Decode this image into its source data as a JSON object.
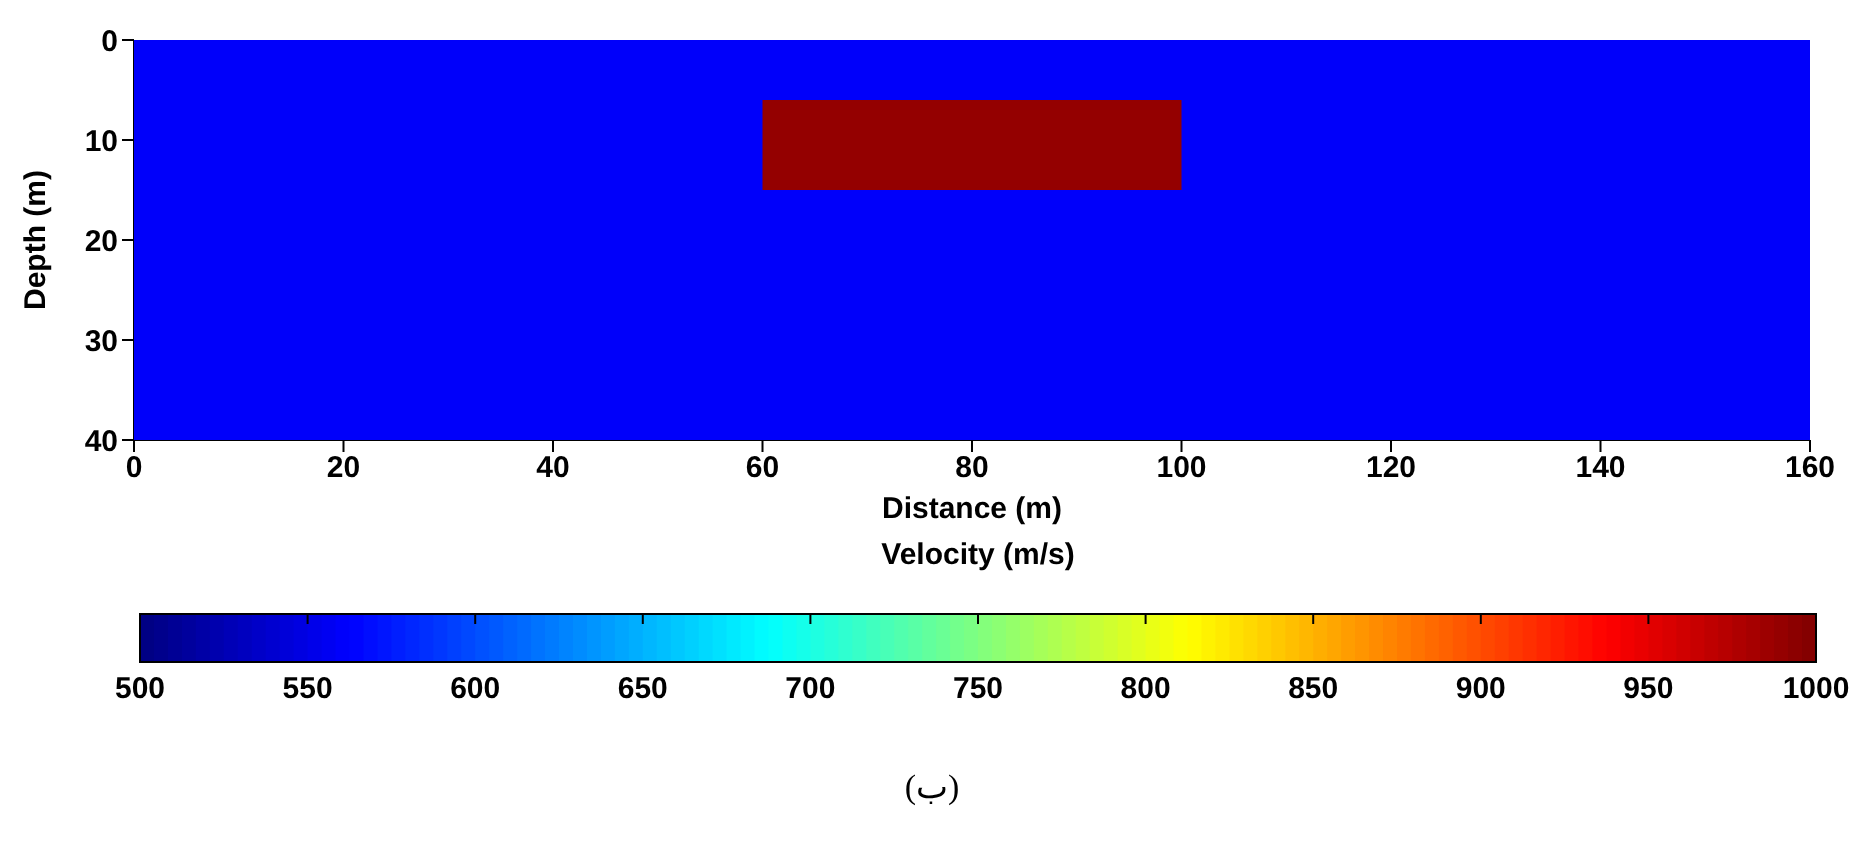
{
  "chart_data": {
    "type": "heatmap",
    "xlabel": "Distance (m)",
    "ylabel": "Depth (m)",
    "clabel": "Velocity (m/s)",
    "cells": [
      [
        560,
        560,
        560,
        560,
        560,
        560,
        560,
        560
      ],
      [
        560,
        560,
        560,
        560,
        560,
        560,
        560,
        560
      ],
      [
        560,
        560,
        560,
        560,
        560,
        560,
        560,
        560
      ],
      [
        560,
        560,
        560,
        560,
        560,
        560,
        560,
        560
      ],
      [
        560,
        560,
        560,
        560,
        560,
        560,
        560,
        560
      ],
      [
        560,
        560,
        560,
        560,
        560,
        560,
        560,
        560
      ],
      [
        560,
        560,
        560,
        990,
        990,
        560,
        560,
        560
      ],
      [
        560,
        560,
        560,
        990,
        990,
        560,
        560,
        560
      ],
      [
        560,
        560,
        560,
        990,
        990,
        560,
        560,
        560
      ],
      [
        560,
        560,
        560,
        990,
        990,
        560,
        560,
        560
      ],
      [
        560,
        560,
        560,
        990,
        990,
        560,
        560,
        560
      ],
      [
        560,
        560,
        560,
        990,
        990,
        560,
        560,
        560
      ],
      [
        560,
        560,
        560,
        990,
        990,
        560,
        560,
        560
      ],
      [
        560,
        560,
        560,
        990,
        990,
        560,
        560,
        560
      ],
      [
        560,
        560,
        560,
        990,
        990,
        560,
        560,
        560
      ],
      [
        560,
        560,
        560,
        560,
        560,
        560,
        560,
        560
      ],
      [
        560,
        560,
        560,
        560,
        560,
        560,
        560,
        560
      ],
      [
        560,
        560,
        560,
        560,
        560,
        560,
        560,
        560
      ],
      [
        560,
        560,
        560,
        560,
        560,
        560,
        560,
        560
      ],
      [
        560,
        560,
        560,
        560,
        560,
        560,
        560,
        560
      ],
      [
        560,
        560,
        560,
        560,
        560,
        560,
        560,
        560
      ],
      [
        560,
        560,
        560,
        560,
        560,
        560,
        560,
        560
      ],
      [
        560,
        560,
        560,
        560,
        560,
        560,
        560,
        560
      ],
      [
        560,
        560,
        560,
        560,
        560,
        560,
        560,
        560
      ],
      [
        560,
        560,
        560,
        560,
        560,
        560,
        560,
        560
      ],
      [
        560,
        560,
        560,
        560,
        560,
        560,
        560,
        560
      ],
      [
        560,
        560,
        560,
        560,
        560,
        560,
        560,
        560
      ],
      [
        560,
        560,
        560,
        560,
        560,
        560,
        560,
        560
      ],
      [
        560,
        560,
        560,
        560,
        560,
        560,
        560,
        560
      ],
      [
        560,
        560,
        560,
        560,
        560,
        560,
        560,
        560
      ],
      [
        560,
        560,
        560,
        560,
        560,
        560,
        560,
        560
      ],
      [
        560,
        560,
        560,
        560,
        560,
        560,
        560,
        560
      ],
      [
        560,
        560,
        560,
        560,
        560,
        560,
        560,
        560
      ],
      [
        560,
        560,
        560,
        560,
        560,
        560,
        560,
        560
      ],
      [
        560,
        560,
        560,
        560,
        560,
        560,
        560,
        560
      ],
      [
        560,
        560,
        560,
        560,
        560,
        560,
        560,
        560
      ],
      [
        560,
        560,
        560,
        560,
        560,
        560,
        560,
        560
      ],
      [
        560,
        560,
        560,
        560,
        560,
        560,
        560,
        560
      ],
      [
        560,
        560,
        560,
        560,
        560,
        560,
        560,
        560
      ],
      [
        560,
        560,
        560,
        560,
        560,
        560,
        560,
        560
      ]
    ],
    "xlim": [
      0,
      160
    ],
    "xticks": [
      0,
      20,
      40,
      60,
      80,
      100,
      120,
      140,
      160
    ],
    "ylim": [
      40,
      0
    ],
    "yticks": [
      0,
      10,
      20,
      30,
      40
    ],
    "clim": [
      500,
      1000
    ],
    "cticks": [
      500,
      550,
      600,
      650,
      700,
      750,
      800,
      850,
      900,
      950,
      1000
    ],
    "annotations": [
      "(ب)"
    ]
  }
}
